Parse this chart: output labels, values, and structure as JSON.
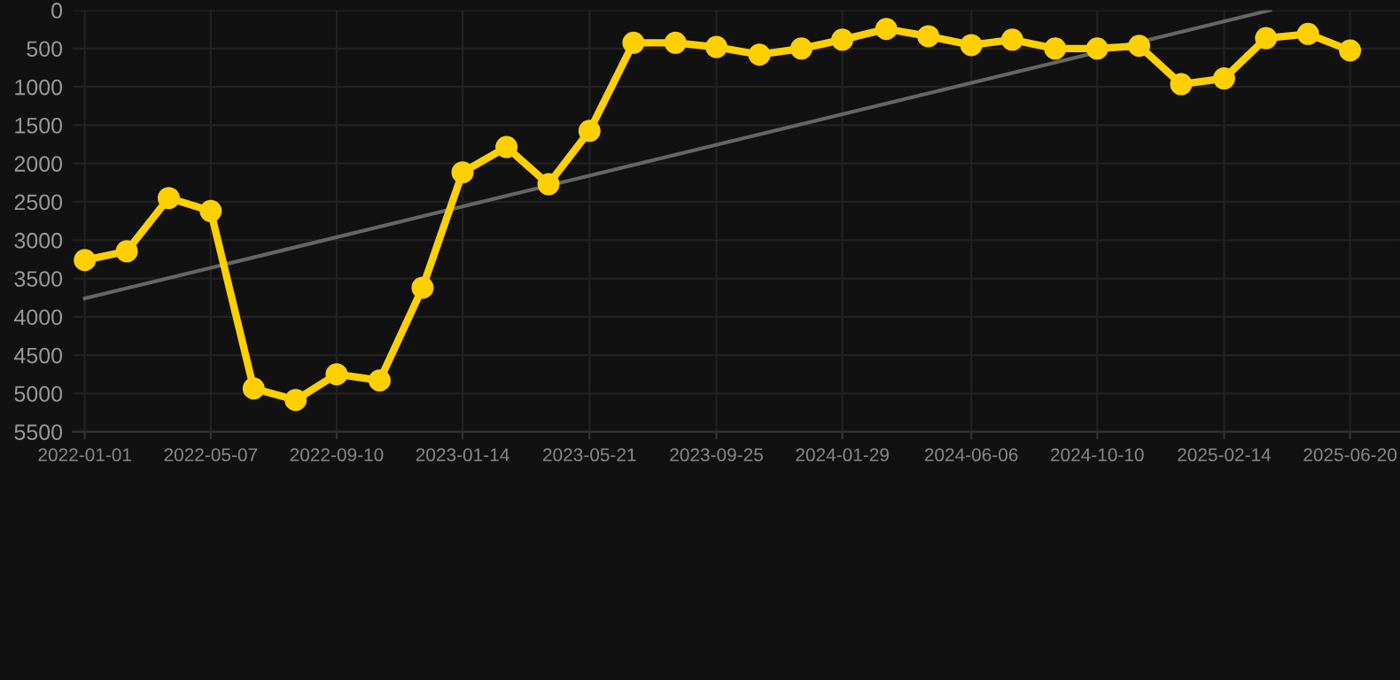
{
  "chart_data": {
    "type": "line",
    "x": [
      "2022-01-01",
      "2022-02-12",
      "2022-03-26",
      "2022-05-07",
      "2022-06-19",
      "2022-07-31",
      "2022-09-10",
      "2022-10-23",
      "2022-12-05",
      "2023-01-14",
      "2023-02-27",
      "2023-04-10",
      "2023-05-21",
      "2023-07-04",
      "2023-08-15",
      "2023-09-25",
      "2023-11-07",
      "2023-12-19",
      "2024-01-29",
      "2024-03-13",
      "2024-04-24",
      "2024-06-06",
      "2024-07-17",
      "2024-08-29",
      "2024-10-10",
      "2024-11-21",
      "2025-01-02",
      "2025-02-14",
      "2025-03-28",
      "2025-05-09",
      "2025-06-20"
    ],
    "series": [
      {
        "color": "#ffd000",
        "marker": "circle",
        "values": [
          3260,
          3145,
          2450,
          2620,
          4935,
          5085,
          4750,
          4830,
          3620,
          2115,
          1785,
          2270,
          1575,
          425,
          425,
          480,
          580,
          500,
          385,
          245,
          340,
          455,
          385,
          500,
          500,
          465,
          965,
          890,
          365,
          310,
          525
        ]
      },
      {
        "type": "line",
        "color": "#666666",
        "marker": "none",
        "x": [
          "2022-01-01",
          "2025-04-01"
        ],
        "values": [
          3760,
          0
        ]
      }
    ],
    "xlim": [
      "2021-12-20",
      "2025-08-09"
    ],
    "ylim": [
      5500,
      0
    ],
    "yticks": [
      0,
      500,
      1000,
      1500,
      2000,
      2500,
      3000,
      3500,
      4000,
      4500,
      5000,
      5500
    ],
    "xticks": [
      "2022-01-01",
      "2022-05-07",
      "2022-09-10",
      "2023-01-14",
      "2023-05-21",
      "2023-09-25",
      "2024-01-29",
      "2024-06-06",
      "2024-10-10",
      "2025-02-14",
      "2025-06-20"
    ],
    "grid": true,
    "legend": false
  }
}
